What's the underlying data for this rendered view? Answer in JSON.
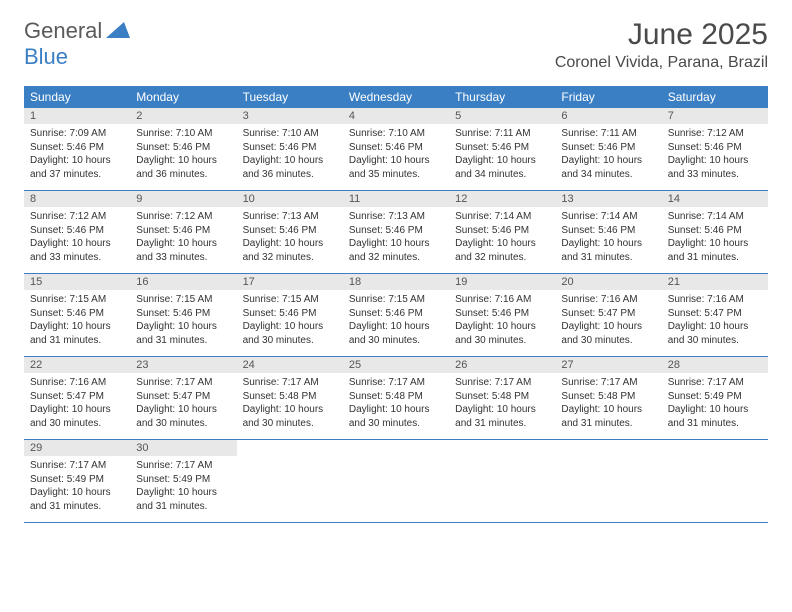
{
  "logo": {
    "text_gray": "General",
    "text_blue": "Blue"
  },
  "header": {
    "month_title": "June 2025",
    "location": "Coronel Vivida, Parana, Brazil"
  },
  "colors": {
    "header_bg": "#3a7fc4",
    "daynum_bg": "#e8e8e8",
    "border": "#3a7fc4"
  },
  "day_names": [
    "Sunday",
    "Monday",
    "Tuesday",
    "Wednesday",
    "Thursday",
    "Friday",
    "Saturday"
  ],
  "weeks": [
    [
      {
        "n": "1",
        "sr": "7:09 AM",
        "ss": "5:46 PM",
        "dl": "10 hours and 37 minutes."
      },
      {
        "n": "2",
        "sr": "7:10 AM",
        "ss": "5:46 PM",
        "dl": "10 hours and 36 minutes."
      },
      {
        "n": "3",
        "sr": "7:10 AM",
        "ss": "5:46 PM",
        "dl": "10 hours and 36 minutes."
      },
      {
        "n": "4",
        "sr": "7:10 AM",
        "ss": "5:46 PM",
        "dl": "10 hours and 35 minutes."
      },
      {
        "n": "5",
        "sr": "7:11 AM",
        "ss": "5:46 PM",
        "dl": "10 hours and 34 minutes."
      },
      {
        "n": "6",
        "sr": "7:11 AM",
        "ss": "5:46 PM",
        "dl": "10 hours and 34 minutes."
      },
      {
        "n": "7",
        "sr": "7:12 AM",
        "ss": "5:46 PM",
        "dl": "10 hours and 33 minutes."
      }
    ],
    [
      {
        "n": "8",
        "sr": "7:12 AM",
        "ss": "5:46 PM",
        "dl": "10 hours and 33 minutes."
      },
      {
        "n": "9",
        "sr": "7:12 AM",
        "ss": "5:46 PM",
        "dl": "10 hours and 33 minutes."
      },
      {
        "n": "10",
        "sr": "7:13 AM",
        "ss": "5:46 PM",
        "dl": "10 hours and 32 minutes."
      },
      {
        "n": "11",
        "sr": "7:13 AM",
        "ss": "5:46 PM",
        "dl": "10 hours and 32 minutes."
      },
      {
        "n": "12",
        "sr": "7:14 AM",
        "ss": "5:46 PM",
        "dl": "10 hours and 32 minutes."
      },
      {
        "n": "13",
        "sr": "7:14 AM",
        "ss": "5:46 PM",
        "dl": "10 hours and 31 minutes."
      },
      {
        "n": "14",
        "sr": "7:14 AM",
        "ss": "5:46 PM",
        "dl": "10 hours and 31 minutes."
      }
    ],
    [
      {
        "n": "15",
        "sr": "7:15 AM",
        "ss": "5:46 PM",
        "dl": "10 hours and 31 minutes."
      },
      {
        "n": "16",
        "sr": "7:15 AM",
        "ss": "5:46 PM",
        "dl": "10 hours and 31 minutes."
      },
      {
        "n": "17",
        "sr": "7:15 AM",
        "ss": "5:46 PM",
        "dl": "10 hours and 30 minutes."
      },
      {
        "n": "18",
        "sr": "7:15 AM",
        "ss": "5:46 PM",
        "dl": "10 hours and 30 minutes."
      },
      {
        "n": "19",
        "sr": "7:16 AM",
        "ss": "5:46 PM",
        "dl": "10 hours and 30 minutes."
      },
      {
        "n": "20",
        "sr": "7:16 AM",
        "ss": "5:47 PM",
        "dl": "10 hours and 30 minutes."
      },
      {
        "n": "21",
        "sr": "7:16 AM",
        "ss": "5:47 PM",
        "dl": "10 hours and 30 minutes."
      }
    ],
    [
      {
        "n": "22",
        "sr": "7:16 AM",
        "ss": "5:47 PM",
        "dl": "10 hours and 30 minutes."
      },
      {
        "n": "23",
        "sr": "7:17 AM",
        "ss": "5:47 PM",
        "dl": "10 hours and 30 minutes."
      },
      {
        "n": "24",
        "sr": "7:17 AM",
        "ss": "5:48 PM",
        "dl": "10 hours and 30 minutes."
      },
      {
        "n": "25",
        "sr": "7:17 AM",
        "ss": "5:48 PM",
        "dl": "10 hours and 30 minutes."
      },
      {
        "n": "26",
        "sr": "7:17 AM",
        "ss": "5:48 PM",
        "dl": "10 hours and 31 minutes."
      },
      {
        "n": "27",
        "sr": "7:17 AM",
        "ss": "5:48 PM",
        "dl": "10 hours and 31 minutes."
      },
      {
        "n": "28",
        "sr": "7:17 AM",
        "ss": "5:49 PM",
        "dl": "10 hours and 31 minutes."
      }
    ],
    [
      {
        "n": "29",
        "sr": "7:17 AM",
        "ss": "5:49 PM",
        "dl": "10 hours and 31 minutes."
      },
      {
        "n": "30",
        "sr": "7:17 AM",
        "ss": "5:49 PM",
        "dl": "10 hours and 31 minutes."
      },
      null,
      null,
      null,
      null,
      null
    ]
  ],
  "labels": {
    "sunrise": "Sunrise: ",
    "sunset": "Sunset: ",
    "daylight": "Daylight: "
  }
}
